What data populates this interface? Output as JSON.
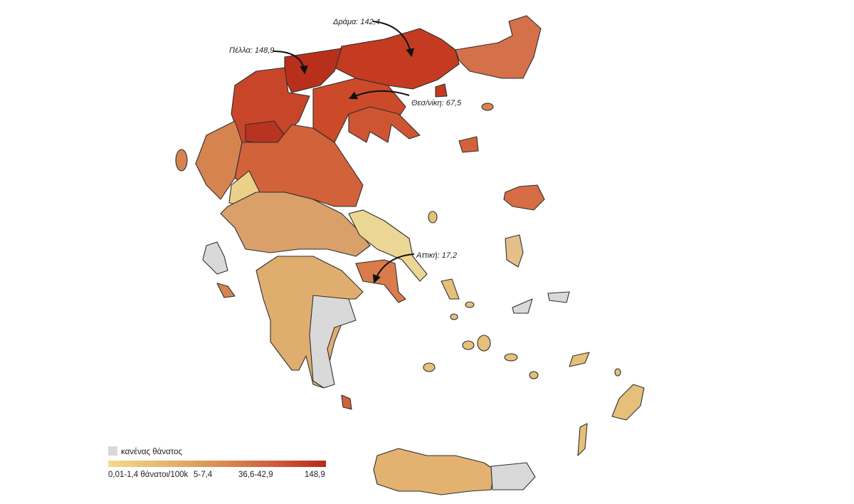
{
  "annotations": [
    {
      "label": "Δράμα: 142,4"
    },
    {
      "label": "Πέλλα: 148,9"
    },
    {
      "label": "Θεσ/νίκη: 67,5"
    },
    {
      "label": "Αττική: 17,2"
    }
  ],
  "legend": {
    "none_label": "κανένας θάνατος",
    "scale_labels": [
      "0,01-1,4 θάνατοι/100k",
      "5-7,4",
      "36,6-42,9",
      "148,9"
    ]
  }
}
